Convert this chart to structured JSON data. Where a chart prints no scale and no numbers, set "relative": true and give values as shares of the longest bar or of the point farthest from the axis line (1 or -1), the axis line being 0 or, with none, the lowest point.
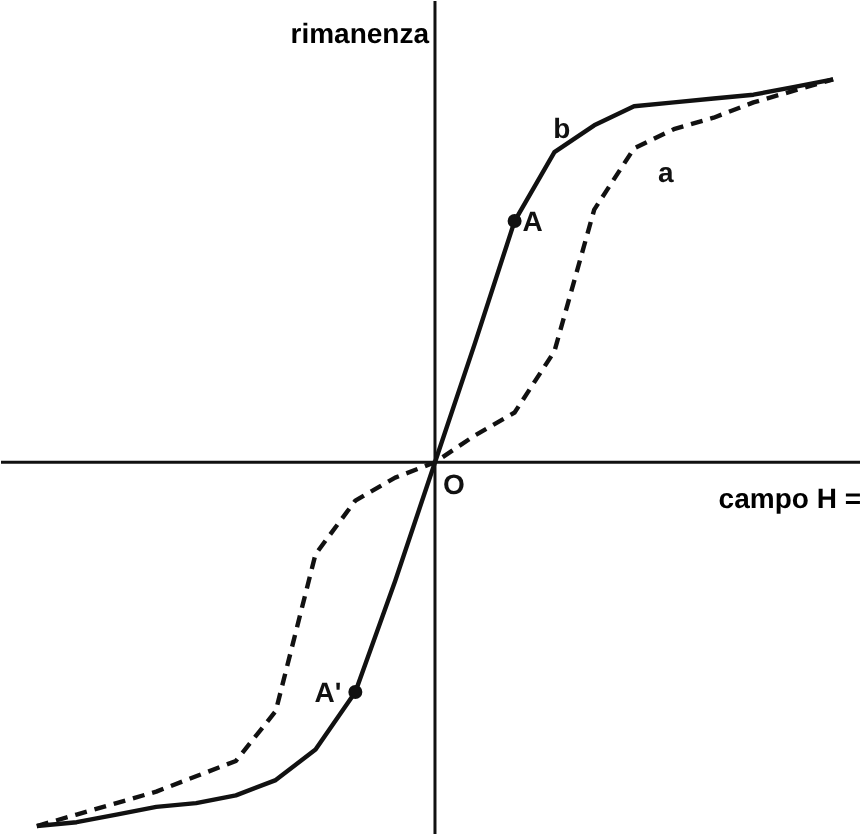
{
  "chart_data": {
    "type": "line",
    "relative": true,
    "xlabel": "campo H =",
    "ylabel": "rimanenza",
    "tick_labels": false,
    "grid": false,
    "categories": [
      null,
      null,
      null,
      null,
      null,
      null,
      null,
      null,
      null,
      null,
      null,
      null,
      null,
      null,
      null,
      null,
      null,
      null,
      null,
      null,
      null
    ],
    "series": [
      {
        "name": "a",
        "color": "#111111",
        "line_style": "dashed",
        "values": [
          -0.95,
          -0.92,
          -0.89,
          -0.86,
          -0.82,
          -0.78,
          -0.65,
          -0.24,
          -0.1,
          -0.04,
          0,
          0.07,
          0.13,
          0.29,
          0.66,
          0.82,
          0.87,
          0.9,
          0.94,
          0.97,
          1.0
        ]
      },
      {
        "name": "b",
        "color": "#111111",
        "line_style": "solid",
        "values": [
          -0.95,
          -0.94,
          -0.92,
          -0.9,
          -0.89,
          -0.87,
          -0.83,
          -0.75,
          -0.6,
          -0.31,
          0,
          0.31,
          0.63,
          0.81,
          0.88,
          0.93,
          0.94,
          0.95,
          0.96,
          0.98,
          1.0
        ]
      }
    ],
    "annotations": [
      "O",
      "A",
      "A'"
    ]
  }
}
